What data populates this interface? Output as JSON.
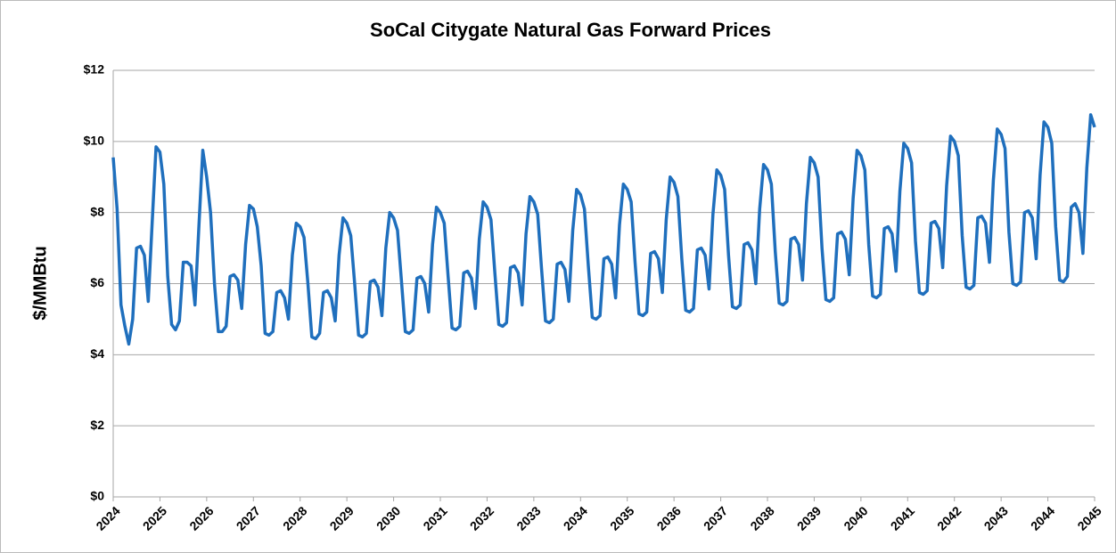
{
  "chart_data": {
    "type": "line",
    "title": "SoCal Citygate Natural Gas Forward Prices",
    "y_label": "$/MMBtu",
    "color": "#1f6fbd",
    "grid": true,
    "ylim": [
      0,
      12
    ],
    "yticks": [
      {
        "value": 0,
        "label": "$0"
      },
      {
        "value": 2,
        "label": "$2"
      },
      {
        "value": 4,
        "label": "$4"
      },
      {
        "value": 6,
        "label": "$6"
      },
      {
        "value": 8,
        "label": "$8"
      },
      {
        "value": 10,
        "label": "$10"
      },
      {
        "value": 12,
        "label": "$12"
      }
    ],
    "categories": [
      "2024",
      null,
      null,
      null,
      null,
      null,
      null,
      null,
      null,
      null,
      null,
      null,
      "2025",
      null,
      null,
      null,
      null,
      null,
      null,
      null,
      null,
      null,
      null,
      null,
      "2026",
      null,
      null,
      null,
      null,
      null,
      null,
      null,
      null,
      null,
      null,
      null,
      "2027",
      null,
      null,
      null,
      null,
      null,
      null,
      null,
      null,
      null,
      null,
      null,
      "2028",
      null,
      null,
      null,
      null,
      null,
      null,
      null,
      null,
      null,
      null,
      null,
      "2029",
      null,
      null,
      null,
      null,
      null,
      null,
      null,
      null,
      null,
      null,
      null,
      "2030",
      null,
      null,
      null,
      null,
      null,
      null,
      null,
      null,
      null,
      null,
      null,
      "2031",
      null,
      null,
      null,
      null,
      null,
      null,
      null,
      null,
      null,
      null,
      null,
      "2032",
      null,
      null,
      null,
      null,
      null,
      null,
      null,
      null,
      null,
      null,
      null,
      "2033",
      null,
      null,
      null,
      null,
      null,
      null,
      null,
      null,
      null,
      null,
      null,
      "2034",
      null,
      null,
      null,
      null,
      null,
      null,
      null,
      null,
      null,
      null,
      null,
      "2035",
      null,
      null,
      null,
      null,
      null,
      null,
      null,
      null,
      null,
      null,
      null,
      "2036",
      null,
      null,
      null,
      null,
      null,
      null,
      null,
      null,
      null,
      null,
      null,
      "2037",
      null,
      null,
      null,
      null,
      null,
      null,
      null,
      null,
      null,
      null,
      null,
      "2038",
      null,
      null,
      null,
      null,
      null,
      null,
      null,
      null,
      null,
      null,
      null,
      "2039",
      null,
      null,
      null,
      null,
      null,
      null,
      null,
      null,
      null,
      null,
      null,
      "2040",
      null,
      null,
      null,
      null,
      null,
      null,
      null,
      null,
      null,
      null,
      null,
      "2041",
      null,
      null,
      null,
      null,
      null,
      null,
      null,
      null,
      null,
      null,
      null,
      "2042",
      null,
      null,
      null,
      null,
      null,
      null,
      null,
      null,
      null,
      null,
      null,
      "2043",
      null,
      null,
      null,
      null,
      null,
      null,
      null,
      null,
      null,
      null,
      null,
      "2044",
      null,
      null,
      null,
      null,
      null,
      null,
      null,
      null,
      null,
      null,
      null,
      "2045"
    ],
    "values": [
      9.55,
      8.1,
      5.4,
      4.8,
      4.3,
      5.0,
      7.0,
      7.05,
      6.8,
      5.5,
      7.7,
      9.85,
      9.7,
      8.8,
      6.2,
      4.85,
      4.7,
      4.95,
      6.6,
      6.6,
      6.5,
      5.4,
      7.6,
      9.75,
      9.0,
      8.0,
      6.0,
      4.65,
      4.65,
      4.8,
      6.2,
      6.25,
      6.1,
      5.3,
      7.1,
      8.2,
      8.1,
      7.6,
      6.5,
      4.6,
      4.55,
      4.65,
      5.75,
      5.8,
      5.6,
      5.0,
      6.8,
      7.7,
      7.6,
      7.3,
      6.0,
      4.5,
      4.45,
      4.6,
      5.75,
      5.8,
      5.6,
      4.95,
      6.8,
      7.85,
      7.7,
      7.35,
      6.0,
      4.55,
      4.5,
      4.6,
      6.05,
      6.1,
      5.9,
      5.1,
      7.0,
      8.0,
      7.85,
      7.5,
      6.1,
      4.65,
      4.6,
      4.7,
      6.15,
      6.2,
      6.0,
      5.2,
      7.1,
      8.15,
      8.0,
      7.7,
      6.2,
      4.75,
      4.7,
      4.8,
      6.3,
      6.35,
      6.15,
      5.3,
      7.25,
      8.3,
      8.15,
      7.8,
      6.3,
      4.85,
      4.8,
      4.9,
      6.45,
      6.5,
      6.3,
      5.4,
      7.4,
      8.45,
      8.3,
      7.95,
      6.4,
      4.95,
      4.9,
      5.0,
      6.55,
      6.6,
      6.4,
      5.5,
      7.5,
      8.65,
      8.5,
      8.1,
      6.5,
      5.05,
      5.0,
      5.1,
      6.7,
      6.75,
      6.55,
      5.6,
      7.65,
      8.8,
      8.65,
      8.3,
      6.6,
      5.15,
      5.1,
      5.2,
      6.85,
      6.9,
      6.7,
      5.75,
      7.8,
      9.0,
      8.85,
      8.45,
      6.7,
      5.25,
      5.2,
      5.3,
      6.95,
      7.0,
      6.8,
      5.85,
      7.95,
      9.2,
      9.05,
      8.65,
      6.8,
      5.35,
      5.3,
      5.4,
      7.1,
      7.15,
      6.95,
      6.0,
      8.1,
      9.35,
      9.2,
      8.8,
      6.9,
      5.45,
      5.4,
      5.5,
      7.25,
      7.3,
      7.1,
      6.1,
      8.25,
      9.55,
      9.4,
      9.0,
      7.0,
      5.55,
      5.5,
      5.6,
      7.4,
      7.45,
      7.25,
      6.25,
      8.4,
      9.75,
      9.6,
      9.2,
      7.1,
      5.65,
      5.6,
      5.7,
      7.55,
      7.6,
      7.4,
      6.35,
      8.6,
      9.95,
      9.8,
      9.4,
      7.2,
      5.75,
      5.7,
      5.8,
      7.7,
      7.75,
      7.55,
      6.45,
      8.75,
      10.15,
      10.0,
      9.6,
      7.35,
      5.9,
      5.85,
      5.95,
      7.85,
      7.9,
      7.7,
      6.6,
      8.9,
      10.35,
      10.2,
      9.8,
      7.45,
      6.0,
      5.95,
      6.05,
      8.0,
      8.05,
      7.85,
      6.7,
      9.05,
      10.55,
      10.4,
      9.95,
      7.6,
      6.1,
      6.05,
      6.2,
      8.15,
      8.25,
      8.0,
      6.85,
      9.25,
      10.75,
      10.4
    ]
  }
}
